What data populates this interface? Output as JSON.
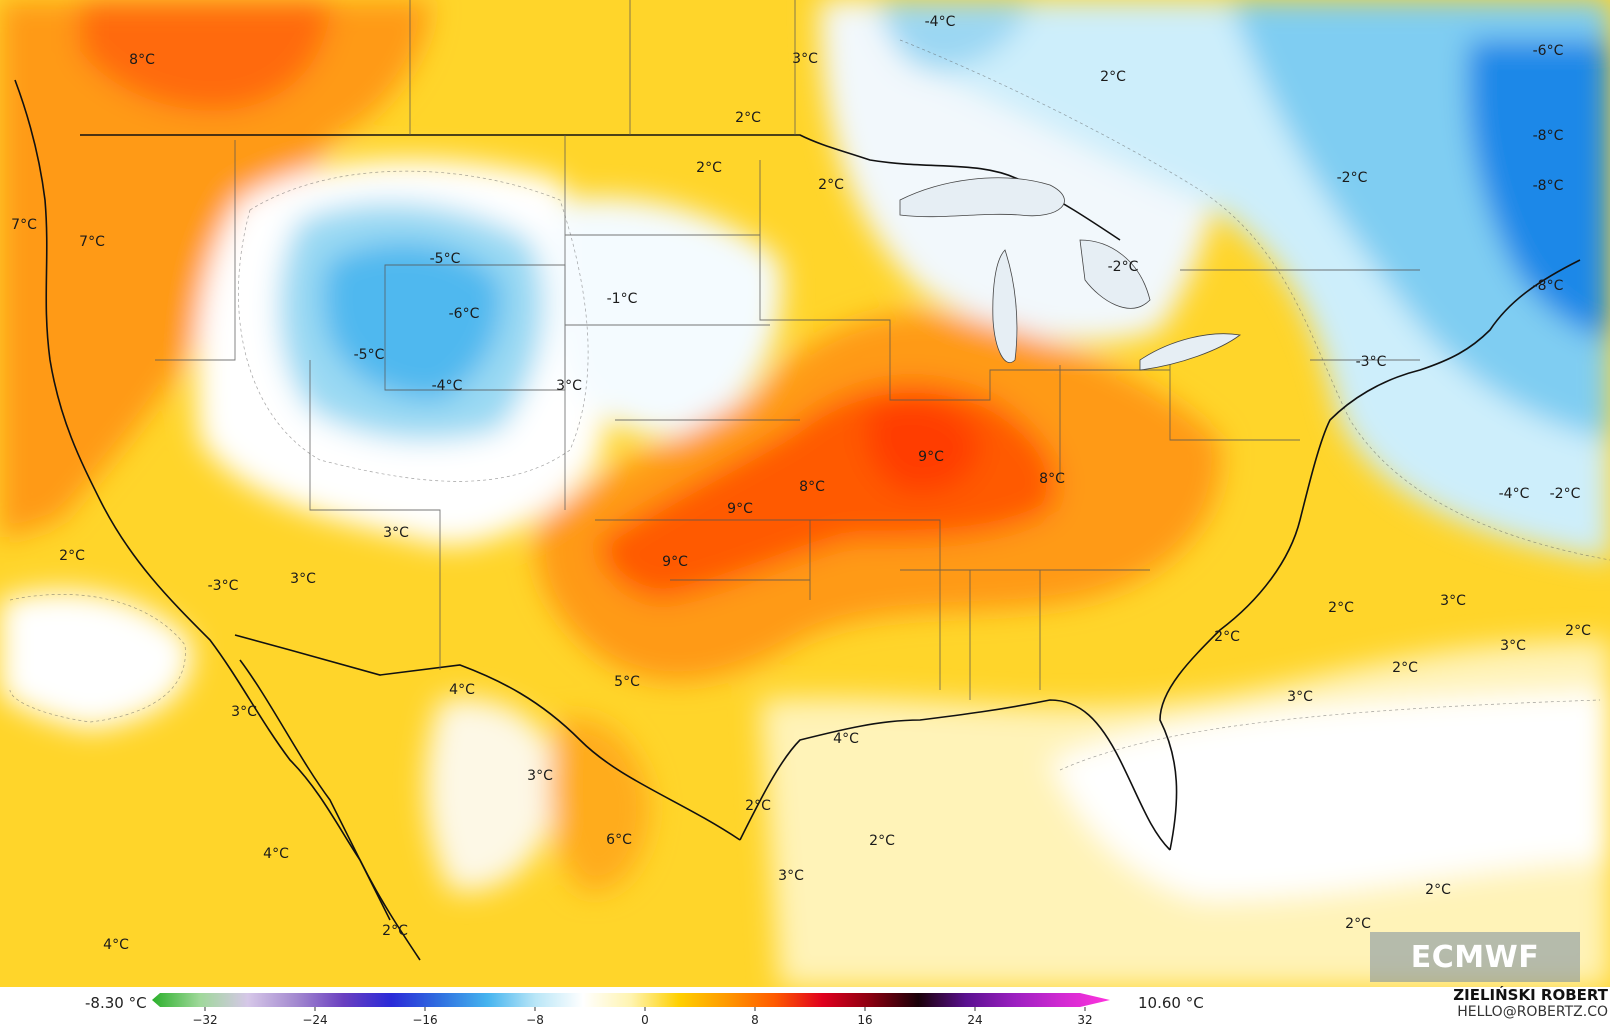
{
  "map": {
    "description_labels": [
      {
        "text": "8°C",
        "warm": true
      },
      {
        "text": "-4°C",
        "warm": false
      },
      {
        "text": "-6°C",
        "warm": false
      },
      {
        "text": "3°C",
        "warm": true
      },
      {
        "text": "2°C",
        "warm": true
      },
      {
        "text": "2°C",
        "warm": true
      },
      {
        "text": "2°C",
        "warm": true
      },
      {
        "text": "2°C",
        "warm": true
      },
      {
        "text": "-8°C",
        "warm": false
      },
      {
        "text": "-8°C",
        "warm": false
      },
      {
        "text": "-2°C",
        "warm": false
      },
      {
        "text": "7°C",
        "warm": true
      },
      {
        "text": "7°C",
        "warm": true
      },
      {
        "text": "-5°C",
        "warm": false
      },
      {
        "text": "-6°C",
        "warm": false
      },
      {
        "text": "-1°C",
        "warm": false
      },
      {
        "text": "-2°C",
        "warm": false
      },
      {
        "text": "-8°C",
        "warm": false
      },
      {
        "text": "-5°C",
        "warm": false
      },
      {
        "text": "-4°C",
        "warm": false
      },
      {
        "text": "3°C",
        "warm": true
      },
      {
        "text": "-3°C",
        "warm": false
      },
      {
        "text": "9°C",
        "warm": true
      },
      {
        "text": "8°C",
        "warm": true
      },
      {
        "text": "8°C",
        "warm": true
      },
      {
        "text": "9°C",
        "warm": true
      },
      {
        "text": "-4°C",
        "warm": false
      },
      {
        "text": "-2°C",
        "warm": false
      },
      {
        "text": "2°C",
        "warm": true
      },
      {
        "text": "3°C",
        "warm": true
      },
      {
        "text": "3°C",
        "warm": true
      },
      {
        "text": "9°C",
        "warm": true
      },
      {
        "text": "-3°C",
        "warm": false
      },
      {
        "text": "2°C",
        "warm": true
      },
      {
        "text": "3°C",
        "warm": true
      },
      {
        "text": "2°C",
        "warm": true
      },
      {
        "text": "3°C",
        "warm": true
      },
      {
        "text": "2°C",
        "warm": true
      },
      {
        "text": "2°C",
        "warm": true
      },
      {
        "text": "4°C",
        "warm": true
      },
      {
        "text": "5°C",
        "warm": true
      },
      {
        "text": "3°C",
        "warm": true
      },
      {
        "text": "3°C",
        "warm": true
      },
      {
        "text": "4°C",
        "warm": true
      },
      {
        "text": "3°C",
        "warm": true
      },
      {
        "text": "2°C",
        "warm": true
      },
      {
        "text": "6°C",
        "warm": true
      },
      {
        "text": "2°C",
        "warm": true
      },
      {
        "text": "3°C",
        "warm": true
      },
      {
        "text": "4°C",
        "warm": true
      },
      {
        "text": "2°C",
        "warm": true
      },
      {
        "text": "4°C",
        "warm": true
      },
      {
        "text": "2°C",
        "warm": true
      },
      {
        "text": "2°C",
        "warm": true
      }
    ]
  },
  "colorbar": {
    "min_value": "-8.30 °C",
    "max_value": "10.60 °C",
    "ticks": [
      "−32",
      "−24",
      "−16",
      "−8",
      "0",
      "8",
      "16",
      "24",
      "32"
    ],
    "stops": [
      "#2bb02b",
      "#9fd89a",
      "#d6c7e8",
      "#a48ad0",
      "#6a3fc0",
      "#2a2ad8",
      "#2f6fe0",
      "#45b4ef",
      "#b9e6f7",
      "#ffffff",
      "#fff4b0",
      "#ffd000",
      "#ff9900",
      "#ff5a00",
      "#e0001e",
      "#8a0010",
      "#1a0008",
      "#5a1090",
      "#9b1fc0",
      "#d22ad2",
      "#ff33dd"
    ]
  },
  "credit": {
    "name": "ZIELIŃSKI ROBERT",
    "email": "HELLO@ROBERTZ.CO"
  },
  "logo": {
    "text": "ECMWF"
  },
  "palette": {
    "warm_deep": "#ff5a00",
    "warm_mid": "#ff9a12",
    "warm_light": "#ffc81a",
    "warm_pale": "#fff2b0",
    "cold_pale": "#d8f0fb",
    "cold_mid": "#8fd3f2",
    "cold_deep": "#1d8ce8"
  }
}
